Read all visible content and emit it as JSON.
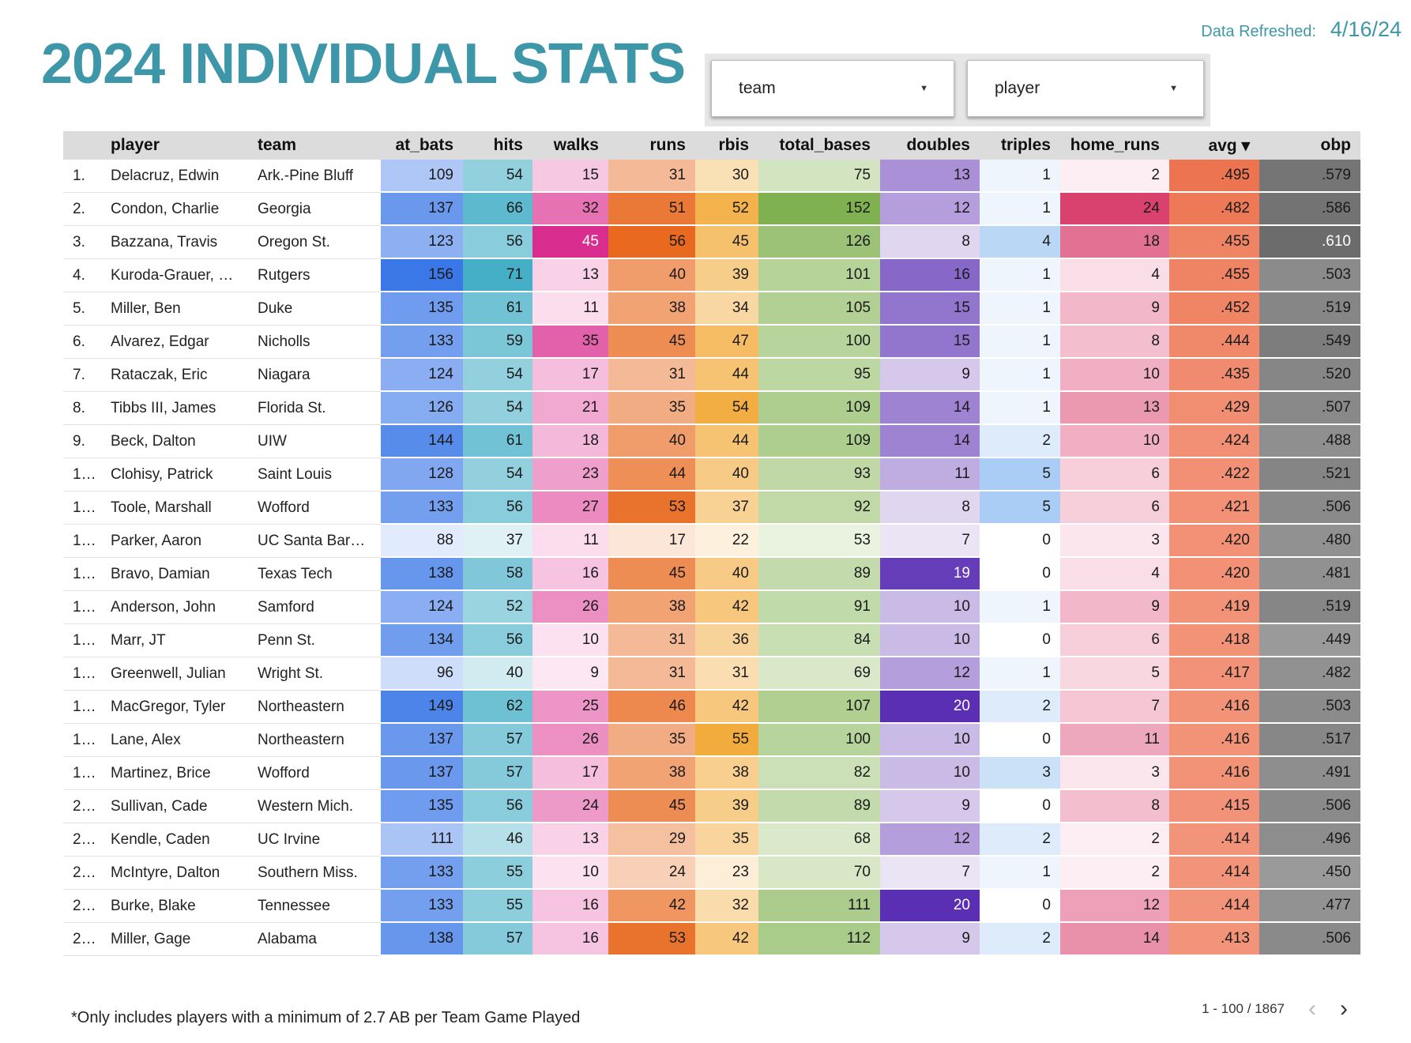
{
  "header": {
    "title": "2024 INDIVIDUAL STATS",
    "refreshed_label": "Data Refreshed:",
    "refreshed_date": "4/16/24"
  },
  "filters": {
    "team": "team",
    "player": "player"
  },
  "table": {
    "columns": [
      "player",
      "team",
      "at_bats",
      "hits",
      "walks",
      "runs",
      "rbis",
      "total_bases",
      "doubles",
      "triples",
      "home_runs",
      "avg ▾",
      "obp"
    ],
    "rows": [
      {
        "idx": "1.",
        "player": "Delacruz, Edwin",
        "team": "Ark.-Pine Bluff",
        "at_bats": "109",
        "hits": "54",
        "walks": "15",
        "runs": "31",
        "rbis": "30",
        "total_bases": "75",
        "doubles": "13",
        "triples": "1",
        "home_runs": "2",
        "avg": ".495",
        "obp": ".579"
      },
      {
        "idx": "2.",
        "player": "Condon, Charlie",
        "team": "Georgia",
        "at_bats": "137",
        "hits": "66",
        "walks": "32",
        "runs": "51",
        "rbis": "52",
        "total_bases": "152",
        "doubles": "12",
        "triples": "1",
        "home_runs": "24",
        "avg": ".482",
        "obp": ".586"
      },
      {
        "idx": "3.",
        "player": "Bazzana, Travis",
        "team": "Oregon St.",
        "at_bats": "123",
        "hits": "56",
        "walks": "45",
        "runs": "56",
        "rbis": "45",
        "total_bases": "126",
        "doubles": "8",
        "triples": "4",
        "home_runs": "18",
        "avg": ".455",
        "obp": ".610"
      },
      {
        "idx": "4.",
        "player": "Kuroda-Grauer, Jo...",
        "team": "Rutgers",
        "at_bats": "156",
        "hits": "71",
        "walks": "13",
        "runs": "40",
        "rbis": "39",
        "total_bases": "101",
        "doubles": "16",
        "triples": "1",
        "home_runs": "4",
        "avg": ".455",
        "obp": ".503"
      },
      {
        "idx": "5.",
        "player": "Miller, Ben",
        "team": "Duke",
        "at_bats": "135",
        "hits": "61",
        "walks": "11",
        "runs": "38",
        "rbis": "34",
        "total_bases": "105",
        "doubles": "15",
        "triples": "1",
        "home_runs": "9",
        "avg": ".452",
        "obp": ".519"
      },
      {
        "idx": "6.",
        "player": "Alvarez, Edgar",
        "team": "Nicholls",
        "at_bats": "133",
        "hits": "59",
        "walks": "35",
        "runs": "45",
        "rbis": "47",
        "total_bases": "100",
        "doubles": "15",
        "triples": "1",
        "home_runs": "8",
        "avg": ".444",
        "obp": ".549"
      },
      {
        "idx": "7.",
        "player": "Rataczak, Eric",
        "team": "Niagara",
        "at_bats": "124",
        "hits": "54",
        "walks": "17",
        "runs": "31",
        "rbis": "44",
        "total_bases": "95",
        "doubles": "9",
        "triples": "1",
        "home_runs": "10",
        "avg": ".435",
        "obp": ".520"
      },
      {
        "idx": "8.",
        "player": "Tibbs III, James",
        "team": "Florida St.",
        "at_bats": "126",
        "hits": "54",
        "walks": "21",
        "runs": "35",
        "rbis": "54",
        "total_bases": "109",
        "doubles": "14",
        "triples": "1",
        "home_runs": "13",
        "avg": ".429",
        "obp": ".507"
      },
      {
        "idx": "9.",
        "player": "Beck, Dalton",
        "team": "UIW",
        "at_bats": "144",
        "hits": "61",
        "walks": "18",
        "runs": "40",
        "rbis": "44",
        "total_bases": "109",
        "doubles": "14",
        "triples": "2",
        "home_runs": "10",
        "avg": ".424",
        "obp": ".488"
      },
      {
        "idx": "1...",
        "player": "Clohisy, Patrick",
        "team": "Saint Louis",
        "at_bats": "128",
        "hits": "54",
        "walks": "23",
        "runs": "44",
        "rbis": "40",
        "total_bases": "93",
        "doubles": "11",
        "triples": "5",
        "home_runs": "6",
        "avg": ".422",
        "obp": ".521"
      },
      {
        "idx": "1...",
        "player": "Toole, Marshall",
        "team": "Wofford",
        "at_bats": "133",
        "hits": "56",
        "walks": "27",
        "runs": "53",
        "rbis": "37",
        "total_bases": "92",
        "doubles": "8",
        "triples": "5",
        "home_runs": "6",
        "avg": ".421",
        "obp": ".506"
      },
      {
        "idx": "1...",
        "player": "Parker, Aaron",
        "team": "UC Santa Barba...",
        "at_bats": "88",
        "hits": "37",
        "walks": "11",
        "runs": "17",
        "rbis": "22",
        "total_bases": "53",
        "doubles": "7",
        "triples": "0",
        "home_runs": "3",
        "avg": ".420",
        "obp": ".480"
      },
      {
        "idx": "1...",
        "player": "Bravo, Damian",
        "team": "Texas Tech",
        "at_bats": "138",
        "hits": "58",
        "walks": "16",
        "runs": "45",
        "rbis": "40",
        "total_bases": "89",
        "doubles": "19",
        "triples": "0",
        "home_runs": "4",
        "avg": ".420",
        "obp": ".481"
      },
      {
        "idx": "1...",
        "player": "Anderson, John",
        "team": "Samford",
        "at_bats": "124",
        "hits": "52",
        "walks": "26",
        "runs": "38",
        "rbis": "42",
        "total_bases": "91",
        "doubles": "10",
        "triples": "1",
        "home_runs": "9",
        "avg": ".419",
        "obp": ".519"
      },
      {
        "idx": "1...",
        "player": "Marr, JT",
        "team": "Penn St.",
        "at_bats": "134",
        "hits": "56",
        "walks": "10",
        "runs": "31",
        "rbis": "36",
        "total_bases": "84",
        "doubles": "10",
        "triples": "0",
        "home_runs": "6",
        "avg": ".418",
        "obp": ".449"
      },
      {
        "idx": "1...",
        "player": "Greenwell, Julian",
        "team": "Wright St.",
        "at_bats": "96",
        "hits": "40",
        "walks": "9",
        "runs": "31",
        "rbis": "31",
        "total_bases": "69",
        "doubles": "12",
        "triples": "1",
        "home_runs": "5",
        "avg": ".417",
        "obp": ".482"
      },
      {
        "idx": "1...",
        "player": "MacGregor, Tyler",
        "team": "Northeastern",
        "at_bats": "149",
        "hits": "62",
        "walks": "25",
        "runs": "46",
        "rbis": "42",
        "total_bases": "107",
        "doubles": "20",
        "triples": "2",
        "home_runs": "7",
        "avg": ".416",
        "obp": ".503"
      },
      {
        "idx": "1...",
        "player": "Lane, Alex",
        "team": "Northeastern",
        "at_bats": "137",
        "hits": "57",
        "walks": "26",
        "runs": "35",
        "rbis": "55",
        "total_bases": "100",
        "doubles": "10",
        "triples": "0",
        "home_runs": "11",
        "avg": ".416",
        "obp": ".517"
      },
      {
        "idx": "1...",
        "player": "Martinez, Brice",
        "team": "Wofford",
        "at_bats": "137",
        "hits": "57",
        "walks": "17",
        "runs": "38",
        "rbis": "38",
        "total_bases": "82",
        "doubles": "10",
        "triples": "3",
        "home_runs": "3",
        "avg": ".416",
        "obp": ".491"
      },
      {
        "idx": "2...",
        "player": "Sullivan, Cade",
        "team": "Western Mich.",
        "at_bats": "135",
        "hits": "56",
        "walks": "24",
        "runs": "45",
        "rbis": "39",
        "total_bases": "89",
        "doubles": "9",
        "triples": "0",
        "home_runs": "8",
        "avg": ".415",
        "obp": ".506"
      },
      {
        "idx": "2...",
        "player": "Kendle, Caden",
        "team": "UC Irvine",
        "at_bats": "111",
        "hits": "46",
        "walks": "13",
        "runs": "29",
        "rbis": "35",
        "total_bases": "68",
        "doubles": "12",
        "triples": "2",
        "home_runs": "2",
        "avg": ".414",
        "obp": ".496"
      },
      {
        "idx": "2...",
        "player": "McIntyre, Dalton",
        "team": "Southern Miss.",
        "at_bats": "133",
        "hits": "55",
        "walks": "10",
        "runs": "24",
        "rbis": "23",
        "total_bases": "70",
        "doubles": "7",
        "triples": "1",
        "home_runs": "2",
        "avg": ".414",
        "obp": ".450"
      },
      {
        "idx": "2...",
        "player": "Burke, Blake",
        "team": "Tennessee",
        "at_bats": "133",
        "hits": "55",
        "walks": "16",
        "runs": "42",
        "rbis": "32",
        "total_bases": "111",
        "doubles": "20",
        "triples": "0",
        "home_runs": "12",
        "avg": ".414",
        "obp": ".477"
      },
      {
        "idx": "2...",
        "player": "Miller, Gage",
        "team": "Alabama",
        "at_bats": "138",
        "hits": "57",
        "walks": "16",
        "runs": "53",
        "rbis": "42",
        "total_bases": "112",
        "doubles": "9",
        "triples": "2",
        "home_runs": "14",
        "avg": ".413",
        "obp": ".506"
      }
    ]
  },
  "heat_colors": {
    "at_bats": {
      "low": "#e2ebfd",
      "high": "#3b78e7"
    },
    "hits": {
      "low": "#dff1f5",
      "high": "#45afc7"
    },
    "walks": {
      "low": "#fde7f3",
      "high": "#d92e8f"
    },
    "runs": {
      "low": "#fbe6d8",
      "high": "#e8691f"
    },
    "rbis": {
      "low": "#fdf0dc",
      "high": "#f2ac3d"
    },
    "total_bases": {
      "low": "#eaf3e0",
      "high": "#7fb150"
    },
    "doubles": {
      "low": "#ebe4f5",
      "high": "#5b2fb4"
    },
    "triples": {
      "low": "#ffffff",
      "high": "#a9cdf4"
    },
    "home_runs": {
      "low": "#fdeef3",
      "high": "#d9426f"
    },
    "avg": {
      "low": "#f2947a",
      "high": "#ed7450"
    },
    "obp": {
      "low": "#9a9a9a",
      "high": "#6c6c6c"
    }
  },
  "footer": {
    "note": "*Only includes players with a minimum of 2.7 AB per Team Game Played",
    "pagination": "1 - 100 / 1867",
    "prev_icon": "chevron-left-icon",
    "next_icon": "chevron-right-icon"
  }
}
